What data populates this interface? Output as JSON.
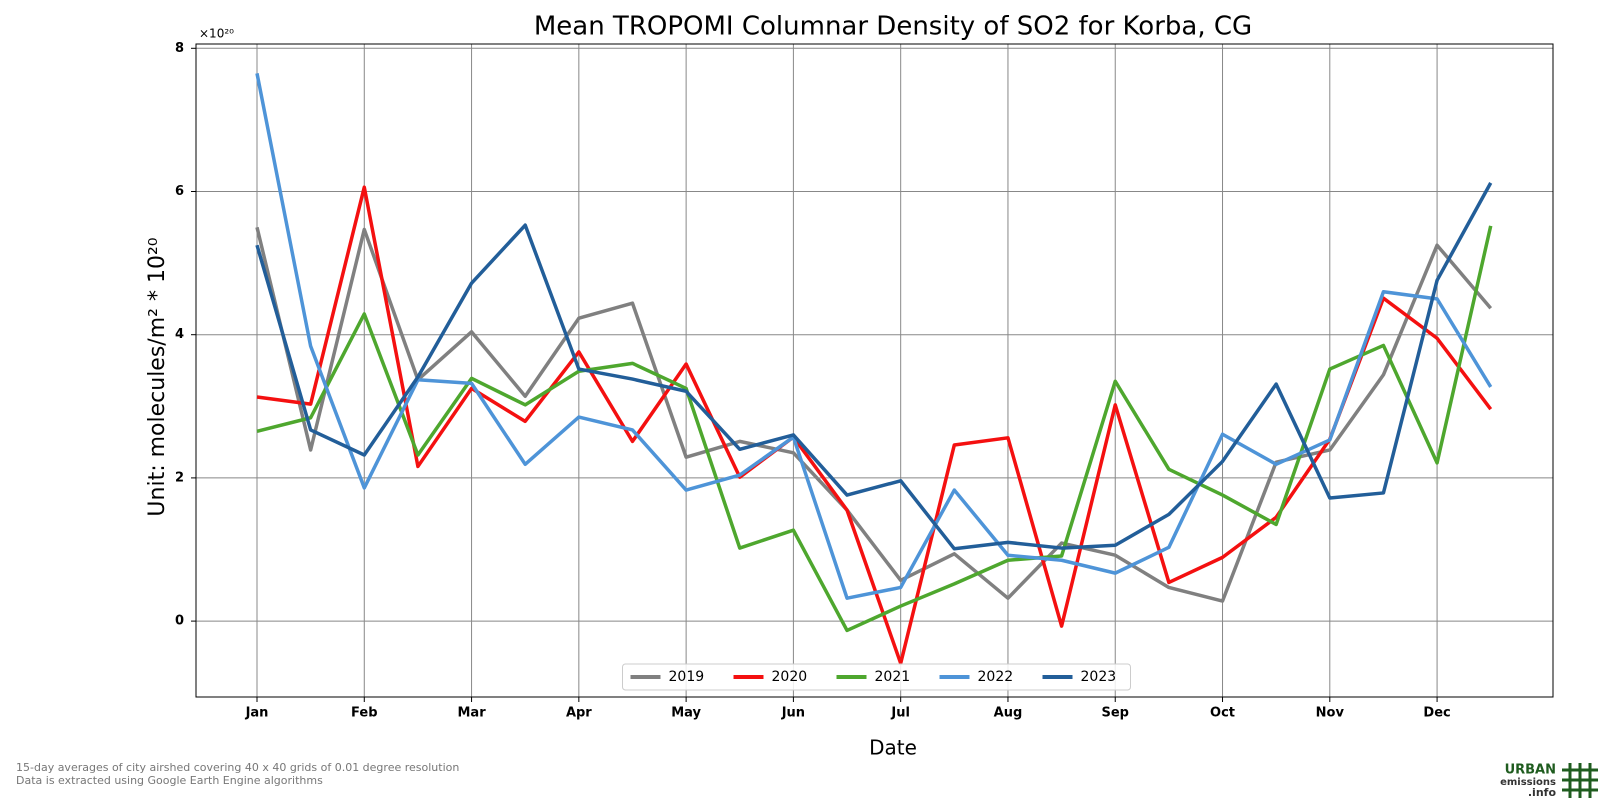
{
  "chart_data": {
    "type": "line",
    "title": "Mean TROPOMI Columnar Density of SO2 for Korba, CG",
    "x_label": "Date",
    "y_label": "Unit: molecules/m² * 10²⁰",
    "y_offset_label": "×10²⁰",
    "categories": [
      "Jan",
      null,
      "Feb",
      null,
      "Mar",
      null,
      "Apr",
      null,
      "May",
      null,
      "Jun",
      null,
      "Jul",
      null,
      "Aug",
      null,
      "Sep",
      null,
      "Oct",
      null,
      "Nov",
      null,
      "Dec",
      null
    ],
    "series": [
      {
        "name": "2019",
        "color": "#808080",
        "values": [
          5.5,
          2.39,
          5.47,
          3.37,
          4.04,
          3.14,
          4.23,
          4.44,
          2.29,
          2.51,
          2.35,
          1.55,
          0.57,
          0.94,
          0.32,
          1.09,
          0.92,
          0.47,
          0.28,
          2.22,
          2.39,
          3.44,
          5.25,
          4.37
        ]
      },
      {
        "name": "2020",
        "color": "#f41010",
        "values": [
          3.13,
          3.03,
          6.06,
          2.16,
          3.25,
          2.79,
          3.76,
          2.51,
          3.59,
          2.01,
          2.57,
          1.55,
          -0.59,
          2.46,
          2.56,
          -0.07,
          3.02,
          0.54,
          0.89,
          1.45,
          2.54,
          4.51,
          3.95,
          2.96
        ]
      },
      {
        "name": "2021",
        "color": "#4ea72e",
        "values": [
          2.65,
          2.84,
          4.29,
          2.32,
          3.39,
          3.02,
          3.49,
          3.6,
          3.25,
          1.02,
          1.27,
          -0.13,
          0.21,
          0.52,
          0.85,
          0.91,
          3.35,
          2.12,
          1.76,
          1.35,
          3.52,
          3.85,
          2.21,
          5.52
        ]
      },
      {
        "name": "2022",
        "color": "#4e94d8",
        "values": [
          7.65,
          3.84,
          1.86,
          3.37,
          3.32,
          2.19,
          2.85,
          2.67,
          1.83,
          2.04,
          2.57,
          0.32,
          0.47,
          1.83,
          0.92,
          0.85,
          0.67,
          1.03,
          2.61,
          2.19,
          2.53,
          4.6,
          4.5,
          3.27
        ]
      },
      {
        "name": "2023",
        "color": "#225e99",
        "values": [
          5.25,
          2.67,
          2.32,
          3.41,
          4.72,
          5.53,
          3.52,
          3.38,
          3.21,
          2.4,
          2.6,
          1.76,
          1.96,
          1.01,
          1.1,
          1.02,
          1.06,
          1.49,
          2.23,
          3.31,
          1.72,
          1.79,
          4.76,
          6.12
        ]
      }
    ],
    "ylim": [
      -1.06,
      8.06
    ],
    "yticks": [
      0,
      2,
      4,
      6,
      8
    ],
    "grid": true,
    "legend": "lower center",
    "notes": [
      "15-day averages of city airshed covering 40 x 40 grids of 0.01 degree resolution",
      "Data is extracted using Google Earth Engine algorithms"
    ],
    "logo": [
      "URBAN",
      "emissions",
      ".info"
    ]
  }
}
